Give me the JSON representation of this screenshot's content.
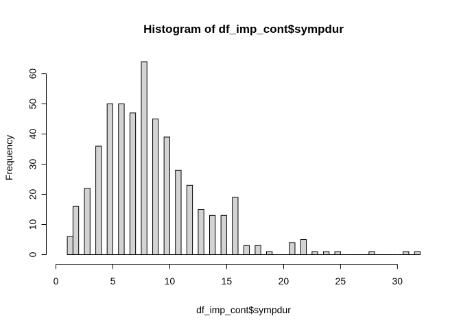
{
  "chart_data": {
    "type": "bar",
    "title": "Histogram of df_imp_cont$sympdur",
    "xlabel": "df_imp_cont$sympdur",
    "ylabel": "Frequency",
    "xlim": [
      0,
      32
    ],
    "ylim": [
      0,
      64
    ],
    "xticks": [
      0,
      5,
      10,
      15,
      20,
      25,
      30
    ],
    "yticks": [
      0,
      10,
      20,
      30,
      40,
      50,
      60
    ],
    "bin_width": 0.5,
    "bin_edges": [
      1,
      32
    ],
    "values": [
      6,
      16,
      0,
      22,
      0,
      36,
      0,
      50,
      0,
      50,
      0,
      47,
      0,
      64,
      0,
      45,
      0,
      39,
      0,
      28,
      0,
      23,
      0,
      15,
      0,
      13,
      0,
      13,
      0,
      19,
      0,
      3,
      0,
      3,
      0,
      1,
      0,
      0,
      0,
      4,
      0,
      5,
      0,
      1,
      0,
      1,
      0,
      1,
      0,
      0,
      0,
      0,
      0,
      1,
      0,
      0,
      0,
      0,
      0,
      1,
      0,
      1
    ],
    "bar_color": "#d3d3d3",
    "grid": false
  }
}
